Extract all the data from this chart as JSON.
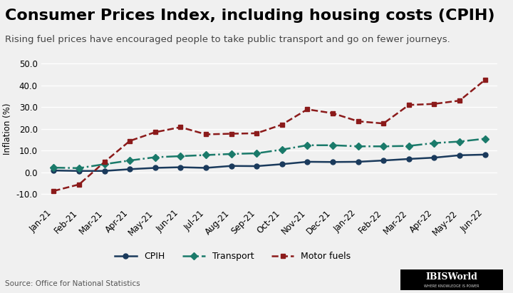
{
  "title": "Consumer Prices Index, including housing costs (CPIH)",
  "subtitle": "Rising fuel prices have encouraged people to take public transport and go on fewer journeys.",
  "ylabel": "Inflation (%)",
  "source": "Source: Office for National Statistics",
  "xlabels": [
    "Jan-21",
    "Feb-21",
    "Mar-21",
    "Apr-21",
    "May-21",
    "Jun-21",
    "Jul-21",
    "Aug-21",
    "Sep-21",
    "Oct-21",
    "Nov-21",
    "Dec-21",
    "Jan-22",
    "Feb-22",
    "Mar-22",
    "Apr-22",
    "May-22",
    "Jun-22"
  ],
  "cpih": [
    0.9,
    0.7,
    0.7,
    1.5,
    2.1,
    2.4,
    2.1,
    3.0,
    2.9,
    3.8,
    4.9,
    4.8,
    4.9,
    5.5,
    6.2,
    6.8,
    7.9,
    8.2
  ],
  "transport": [
    2.2,
    2.0,
    3.8,
    5.5,
    7.0,
    7.5,
    8.0,
    8.5,
    8.8,
    10.5,
    12.5,
    12.5,
    12.0,
    12.0,
    12.2,
    13.5,
    14.2,
    15.5
  ],
  "motor_fuels": [
    -8.5,
    -5.5,
    4.8,
    14.5,
    18.5,
    20.8,
    17.5,
    17.8,
    18.0,
    22.0,
    29.0,
    27.2,
    23.5,
    22.5,
    31.0,
    31.5,
    33.0,
    42.5
  ],
  "cpih_color": "#1a3a5c",
  "transport_color": "#1a7a6a",
  "motor_fuels_color": "#8b1a1a",
  "bg_color": "#f0f0f0",
  "plot_bg_color": "#f0f0f0",
  "ylim": [
    -15,
    55
  ],
  "yticks": [
    -10.0,
    0.0,
    10.0,
    20.0,
    30.0,
    40.0,
    50.0
  ],
  "title_fontsize": 16,
  "subtitle_fontsize": 9.5,
  "axis_fontsize": 8.5,
  "legend_fontsize": 9
}
